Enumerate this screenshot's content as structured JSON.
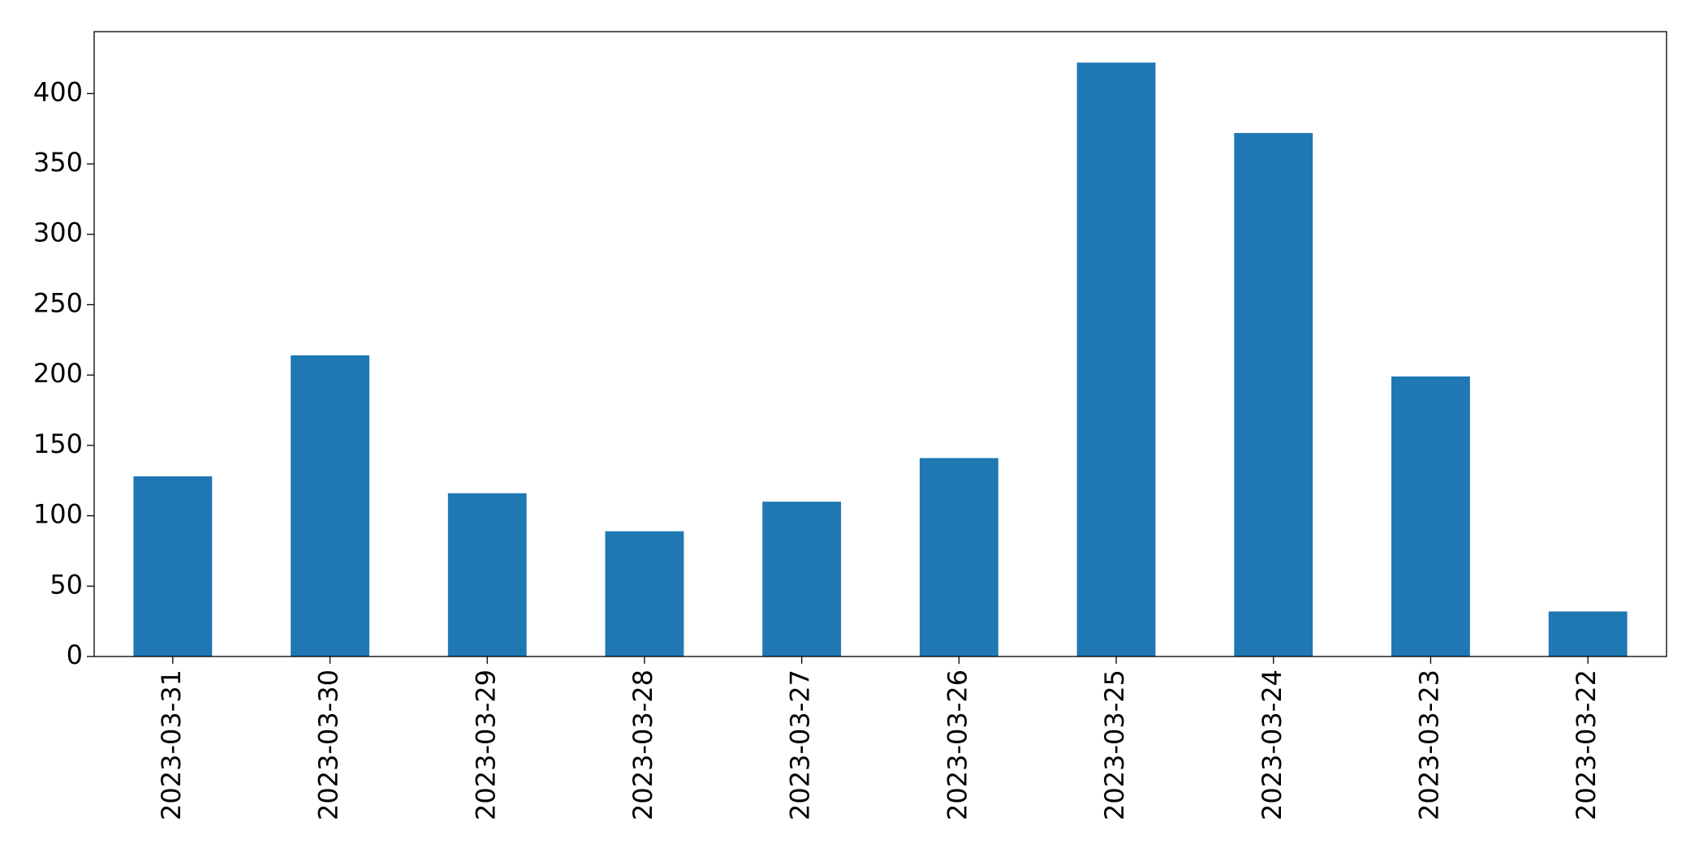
{
  "chart_data": {
    "type": "bar",
    "categories": [
      "2023-03-31",
      "2023-03-30",
      "2023-03-29",
      "2023-03-28",
      "2023-03-27",
      "2023-03-26",
      "2023-03-25",
      "2023-03-24",
      "2023-03-23",
      "2023-03-22"
    ],
    "values": [
      128,
      214,
      116,
      89,
      110,
      141,
      422,
      372,
      199,
      32
    ],
    "color": "#1f77b4",
    "ylim": [
      0,
      444
    ],
    "yticks": [
      0,
      50,
      100,
      150,
      200,
      250,
      300,
      350,
      400
    ],
    "grid": false
  }
}
